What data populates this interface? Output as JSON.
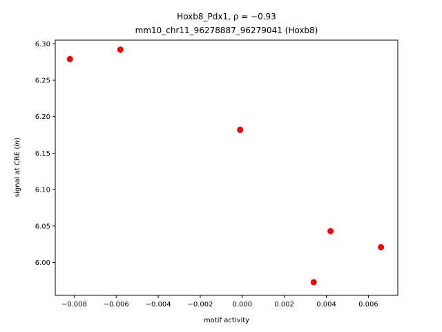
{
  "chart_data": {
    "type": "scatter",
    "title_line1": "Hoxb8_Pdx1, ρ = −0.93",
    "title_line2": "mm10_chr11_96278887_96279041 (Hoxb8)",
    "xlabel": "motif activity",
    "ylabel": "signal at CRE (ln)",
    "xlim": [
      -0.0089,
      0.0074
    ],
    "ylim": [
      5.955,
      6.305
    ],
    "xticks": [
      -0.008,
      -0.006,
      -0.004,
      -0.002,
      0.0,
      0.002,
      0.004,
      0.006
    ],
    "xtick_labels": [
      "−0.008",
      "−0.006",
      "−0.004",
      "−0.002",
      "0.000",
      "0.002",
      "0.004",
      "0.006"
    ],
    "yticks": [
      6.0,
      6.05,
      6.1,
      6.15,
      6.2,
      6.25,
      6.3
    ],
    "ytick_labels": [
      "6.00",
      "6.05",
      "6.10",
      "6.15",
      "6.20",
      "6.25",
      "6.30"
    ],
    "marker_color": "#ff0000",
    "points": [
      {
        "x": -0.0082,
        "y": 6.279
      },
      {
        "x": -0.0058,
        "y": 6.292
      },
      {
        "x": -0.0001,
        "y": 6.182
      },
      {
        "x": 0.0042,
        "y": 6.043
      },
      {
        "x": 0.0034,
        "y": 5.973
      },
      {
        "x": 0.0066,
        "y": 6.021
      }
    ]
  }
}
